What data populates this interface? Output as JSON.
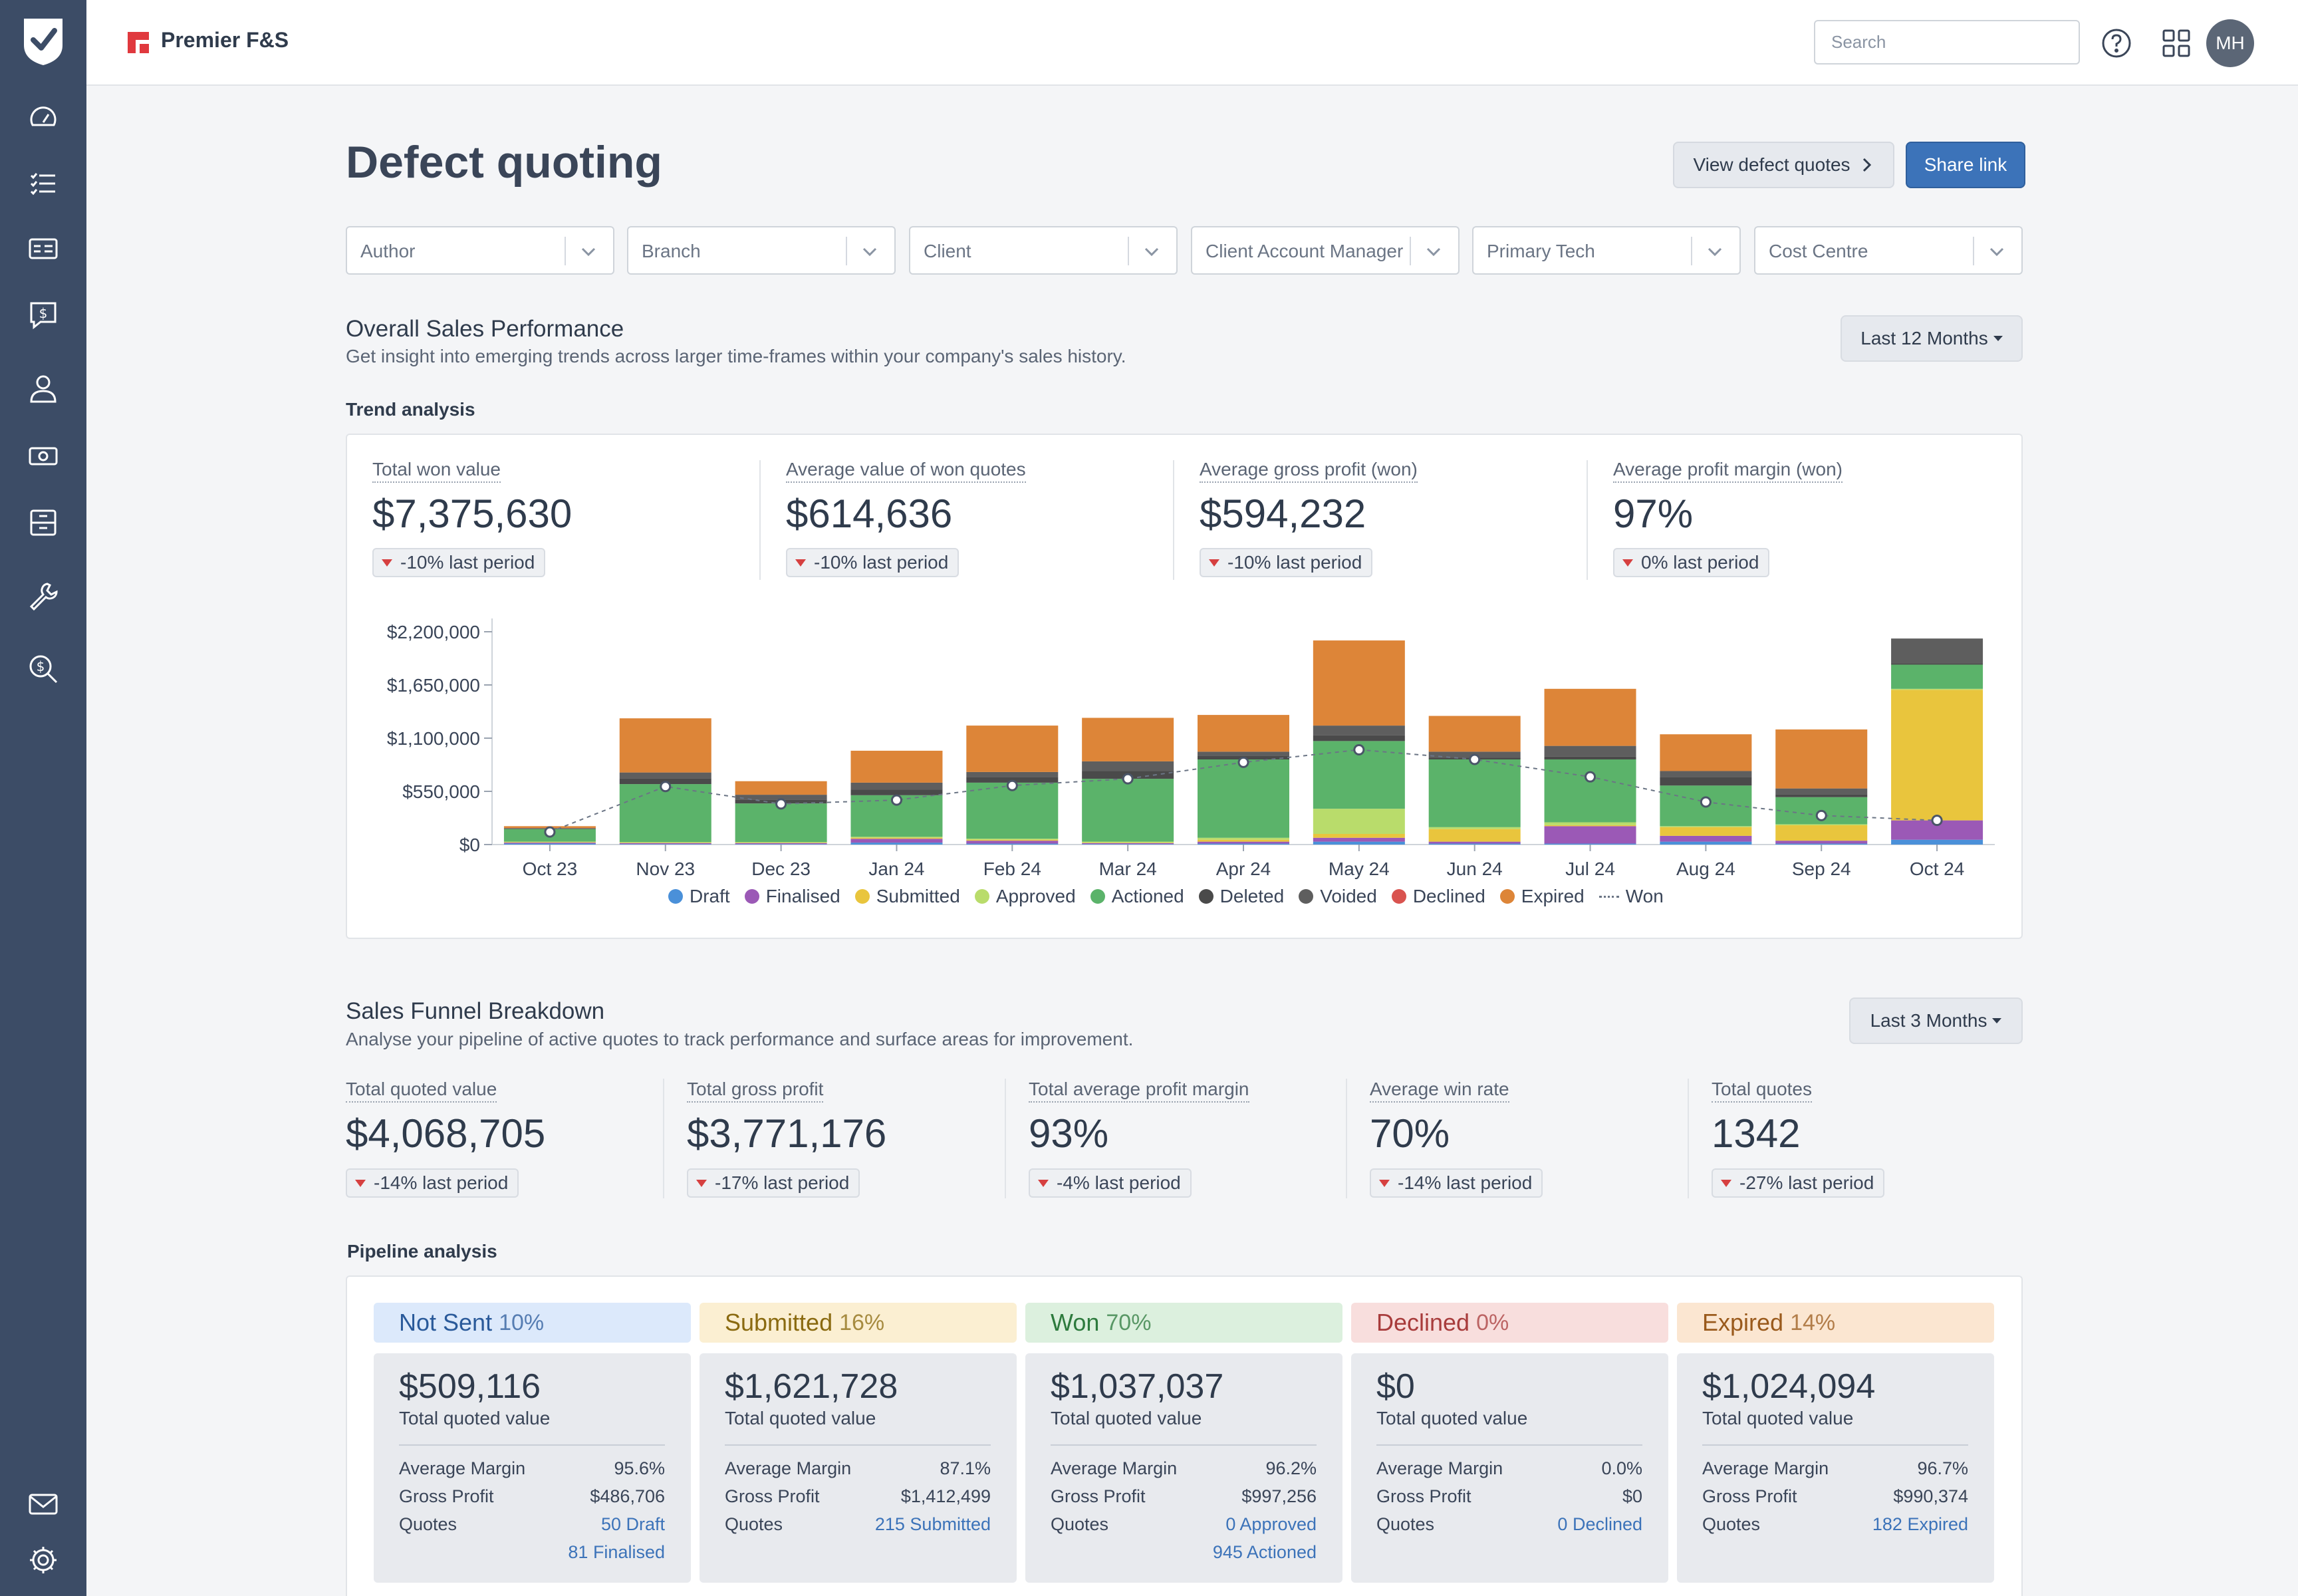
{
  "app": {
    "brand": "Premier F&S",
    "avatar_initials": "MH"
  },
  "search": {
    "placeholder": "Search"
  },
  "sidebar": {
    "items": [
      "dashboard",
      "task-list",
      "id-card",
      "quote-bubble",
      "user",
      "cash",
      "archive",
      "wrench",
      "search-dollar"
    ],
    "bottom": [
      "mail",
      "settings"
    ]
  },
  "page": {
    "title": "Defect quoting",
    "view_button": "View defect quotes",
    "share_button": "Share link"
  },
  "filters": [
    "Author",
    "Branch",
    "Client",
    "Client Account Manager",
    "Primary Tech",
    "Cost Centre"
  ],
  "overall": {
    "title": "Overall Sales Performance",
    "subtitle": "Get insight into emerging trends across larger time-frames within your company's sales history.",
    "period": "Last 12 Months",
    "trend_label": "Trend analysis",
    "kpis": [
      {
        "label": "Total won value",
        "value": "$7,375,630",
        "change": "-10% last period"
      },
      {
        "label": "Average value of won quotes",
        "value": "$614,636",
        "change": "-10% last period"
      },
      {
        "label": "Average gross profit (won)",
        "value": "$594,232",
        "change": "-10% last period"
      },
      {
        "label": "Average profit margin (won)",
        "value": "97%",
        "change": "0% last period"
      }
    ]
  },
  "chart_data": {
    "type": "bar",
    "stacked": true,
    "title": "Trend analysis",
    "categories": [
      "Oct 23",
      "Nov 23",
      "Dec 23",
      "Jan 24",
      "Feb 24",
      "Mar 24",
      "Apr 24",
      "May 24",
      "Jun 24",
      "Jul 24",
      "Aug 24",
      "Sep 24",
      "Oct 24"
    ],
    "ylim": [
      0,
      2200000
    ],
    "yticks": [
      0,
      550000,
      1100000,
      1650000,
      2200000
    ],
    "ytick_labels": [
      "$0",
      "$550,000",
      "$1,100,000",
      "$1,650,000",
      "$2,200,000"
    ],
    "series": [
      {
        "name": "Draft",
        "color": "#4a90d9",
        "values": [
          10000,
          5000,
          5000,
          20000,
          10000,
          5000,
          10000,
          30000,
          10000,
          10000,
          30000,
          10000,
          50000
        ]
      },
      {
        "name": "Finalised",
        "color": "#9b59b6",
        "values": [
          10000,
          10000,
          10000,
          40000,
          30000,
          10000,
          20000,
          40000,
          20000,
          180000,
          60000,
          30000,
          200000
        ]
      },
      {
        "name": "Submitted",
        "color": "#e9c53d",
        "values": [
          5000,
          5000,
          5000,
          10000,
          10000,
          5000,
          20000,
          40000,
          130000,
          10000,
          90000,
          160000,
          1350000
        ]
      },
      {
        "name": "Approved",
        "color": "#b9dc6b",
        "values": [
          5000,
          5000,
          5000,
          10000,
          10000,
          10000,
          20000,
          260000,
          20000,
          30000,
          10000,
          10000,
          10000
        ]
      },
      {
        "name": "Actioned",
        "color": "#5bb36a",
        "values": [
          130000,
          600000,
          400000,
          430000,
          580000,
          650000,
          810000,
          700000,
          700000,
          650000,
          420000,
          280000,
          250000
        ]
      },
      {
        "name": "Deleted",
        "color": "#4a4a4a",
        "values": [
          5000,
          60000,
          40000,
          60000,
          60000,
          80000,
          40000,
          60000,
          20000,
          30000,
          90000,
          30000,
          10000
        ]
      },
      {
        "name": "Voided",
        "color": "#5e5e5e",
        "values": [
          5000,
          60000,
          50000,
          70000,
          50000,
          100000,
          40000,
          100000,
          60000,
          110000,
          60000,
          60000,
          260000
        ]
      },
      {
        "name": "Declined",
        "color": "#d9534f",
        "values": [
          0,
          0,
          0,
          0,
          0,
          0,
          0,
          0,
          0,
          0,
          0,
          0,
          0
        ]
      },
      {
        "name": "Expired",
        "color": "#dd8538",
        "values": [
          20000,
          560000,
          140000,
          330000,
          480000,
          450000,
          380000,
          880000,
          370000,
          590000,
          380000,
          610000,
          0
        ]
      }
    ],
    "line": {
      "name": "Won",
      "values": [
        130000,
        600000,
        420000,
        460000,
        610000,
        680000,
        850000,
        980000,
        880000,
        700000,
        440000,
        300000,
        250000
      ]
    },
    "legend": [
      "Draft",
      "Finalised",
      "Submitted",
      "Approved",
      "Actioned",
      "Deleted",
      "Voided",
      "Declined",
      "Expired",
      "Won"
    ],
    "legend_position": "bottom"
  },
  "funnel": {
    "title": "Sales Funnel Breakdown",
    "subtitle": "Analyse your pipeline of active quotes to track performance and surface areas for improvement.",
    "period": "Last 3 Months",
    "pipeline_label": "Pipeline analysis",
    "kpis": [
      {
        "label": "Total quoted value",
        "value": "$4,068,705",
        "change": "-14% last period"
      },
      {
        "label": "Total gross profit",
        "value": "$3,771,176",
        "change": "-17% last period"
      },
      {
        "label": "Total average profit margin",
        "value": "93%",
        "change": "-4% last period"
      },
      {
        "label": "Average win rate",
        "value": "70%",
        "change": "-14% last period"
      },
      {
        "label": "Total quotes",
        "value": "1342",
        "change": "-27% last period"
      }
    ],
    "stages": [
      {
        "name": "Not Sent",
        "pct": "10%",
        "value": "$509,116",
        "caption": "Total quoted value",
        "margin_label": "Average Margin",
        "margin": "95.6%",
        "gp_label": "Gross Profit",
        "gp": "$486,706",
        "quotes_label": "Quotes",
        "link1": "50 Draft",
        "link2": "81 Finalised",
        "bg": "#dce9fb",
        "fg": "#2a5a9a"
      },
      {
        "name": "Submitted",
        "pct": "16%",
        "value": "$1,621,728",
        "caption": "Total quoted value",
        "margin_label": "Average Margin",
        "margin": "87.1%",
        "gp_label": "Gross Profit",
        "gp": "$1,412,499",
        "quotes_label": "Quotes",
        "link1": "215 Submitted",
        "link2": "",
        "bg": "#fbefd2",
        "fg": "#8a6a10"
      },
      {
        "name": "Won",
        "pct": "70%",
        "value": "$1,037,037",
        "caption": "Total quoted value",
        "margin_label": "Average Margin",
        "margin": "96.2%",
        "gp_label": "Gross Profit",
        "gp": "$997,256",
        "quotes_label": "Quotes",
        "link1": "0 Approved",
        "link2": "945 Actioned",
        "bg": "#dcf0de",
        "fg": "#2d7a3d"
      },
      {
        "name": "Declined",
        "pct": "0%",
        "value": "$0",
        "caption": "Total quoted value",
        "margin_label": "Average Margin",
        "margin": "0.0%",
        "gp_label": "Gross Profit",
        "gp": "$0",
        "quotes_label": "Quotes",
        "link1": "0 Declined",
        "link2": "",
        "bg": "#f8dedd",
        "fg": "#a83c3c"
      },
      {
        "name": "Expired",
        "pct": "14%",
        "value": "$1,024,094",
        "caption": "Total quoted value",
        "margin_label": "Average Margin",
        "margin": "96.7%",
        "gp_label": "Gross Profit",
        "gp": "$990,374",
        "quotes_label": "Quotes",
        "link1": "182 Expired",
        "link2": "",
        "bg": "#fbe6d1",
        "fg": "#9a5a1c"
      }
    ]
  }
}
